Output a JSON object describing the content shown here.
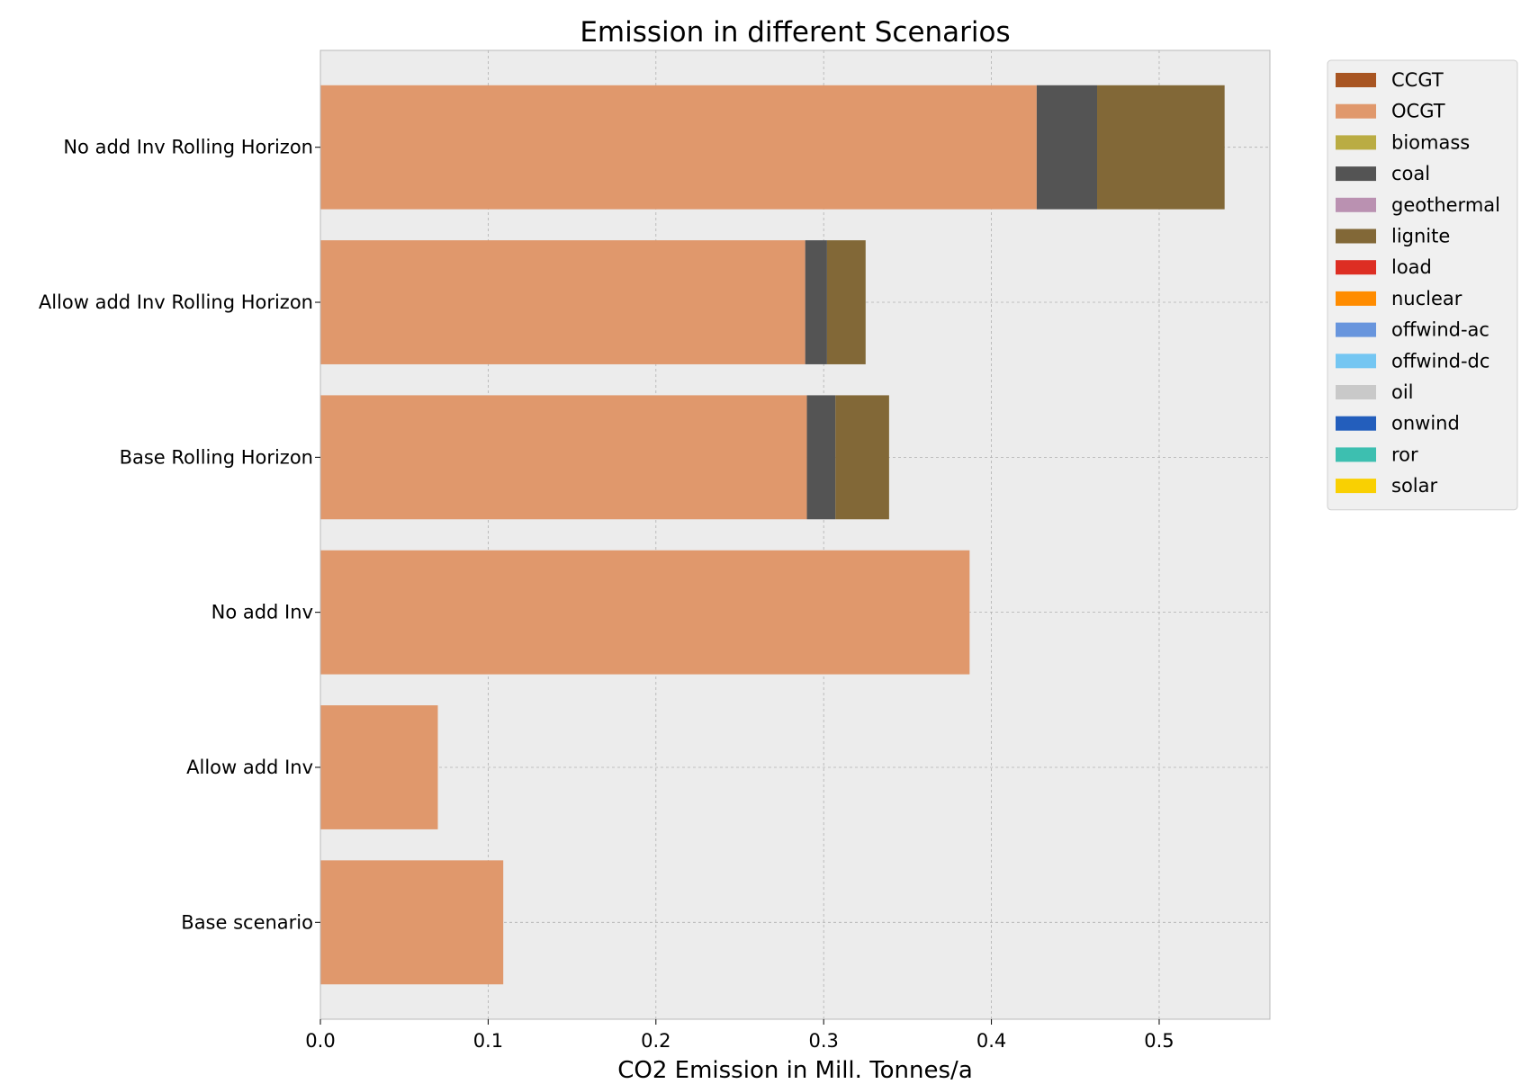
{
  "chart_data": {
    "type": "bar",
    "orientation": "horizontal",
    "stacked": true,
    "title": "Emission in different Scenarios",
    "xlabel": "CO2 Emission in Mill. Tonnes/a",
    "ylabel": "",
    "xlim": [
      0,
      0.566
    ],
    "xticks": [
      0.0,
      0.1,
      0.2,
      0.3,
      0.4,
      0.5
    ],
    "xtick_labels": [
      "0.0",
      "0.1",
      "0.2",
      "0.3",
      "0.4",
      "0.5"
    ],
    "grid": true,
    "legend_position": "outside right, top",
    "categories": [
      "No add Inv Rolling Horizon",
      "Allow add Inv Rolling Horizon",
      "Base Rolling Horizon",
      "No add Inv",
      "Allow add Inv",
      "Base scenario"
    ],
    "series": [
      {
        "name": "CCGT",
        "color": "#a85522",
        "values": [
          0,
          0,
          0,
          0,
          0,
          0
        ]
      },
      {
        "name": "OCGT",
        "color": "#e0986c",
        "values": [
          0.427,
          0.289,
          0.29,
          0.387,
          0.07,
          0.109
        ]
      },
      {
        "name": "biomass",
        "color": "#baac43",
        "values": [
          0,
          0,
          0,
          0,
          0,
          0
        ]
      },
      {
        "name": "coal",
        "color": "#545454",
        "values": [
          0.036,
          0.013,
          0.017,
          0,
          0,
          0
        ]
      },
      {
        "name": "geothermal",
        "color": "#ba91b1",
        "values": [
          0,
          0,
          0,
          0,
          0,
          0
        ]
      },
      {
        "name": "lignite",
        "color": "#826837",
        "values": [
          0.076,
          0.023,
          0.032,
          0,
          0,
          0
        ]
      },
      {
        "name": "load",
        "color": "#dd2e23",
        "values": [
          0,
          0,
          0,
          0,
          0,
          0
        ]
      },
      {
        "name": "nuclear",
        "color": "#ff8c00",
        "values": [
          0,
          0,
          0,
          0,
          0,
          0
        ]
      },
      {
        "name": "offwind-ac",
        "color": "#6895dd",
        "values": [
          0,
          0,
          0,
          0,
          0,
          0
        ]
      },
      {
        "name": "offwind-dc",
        "color": "#74c6f2",
        "values": [
          0,
          0,
          0,
          0,
          0,
          0
        ]
      },
      {
        "name": "oil",
        "color": "#c9c9c9",
        "values": [
          0,
          0,
          0,
          0,
          0,
          0
        ]
      },
      {
        "name": "onwind",
        "color": "#235ebc",
        "values": [
          0,
          0,
          0,
          0,
          0,
          0
        ]
      },
      {
        "name": "ror",
        "color": "#3dbfb0",
        "values": [
          0,
          0,
          0,
          0,
          0,
          0
        ]
      },
      {
        "name": "solar",
        "color": "#f9d002",
        "values": [
          0,
          0,
          0,
          0,
          0,
          0
        ]
      }
    ]
  }
}
